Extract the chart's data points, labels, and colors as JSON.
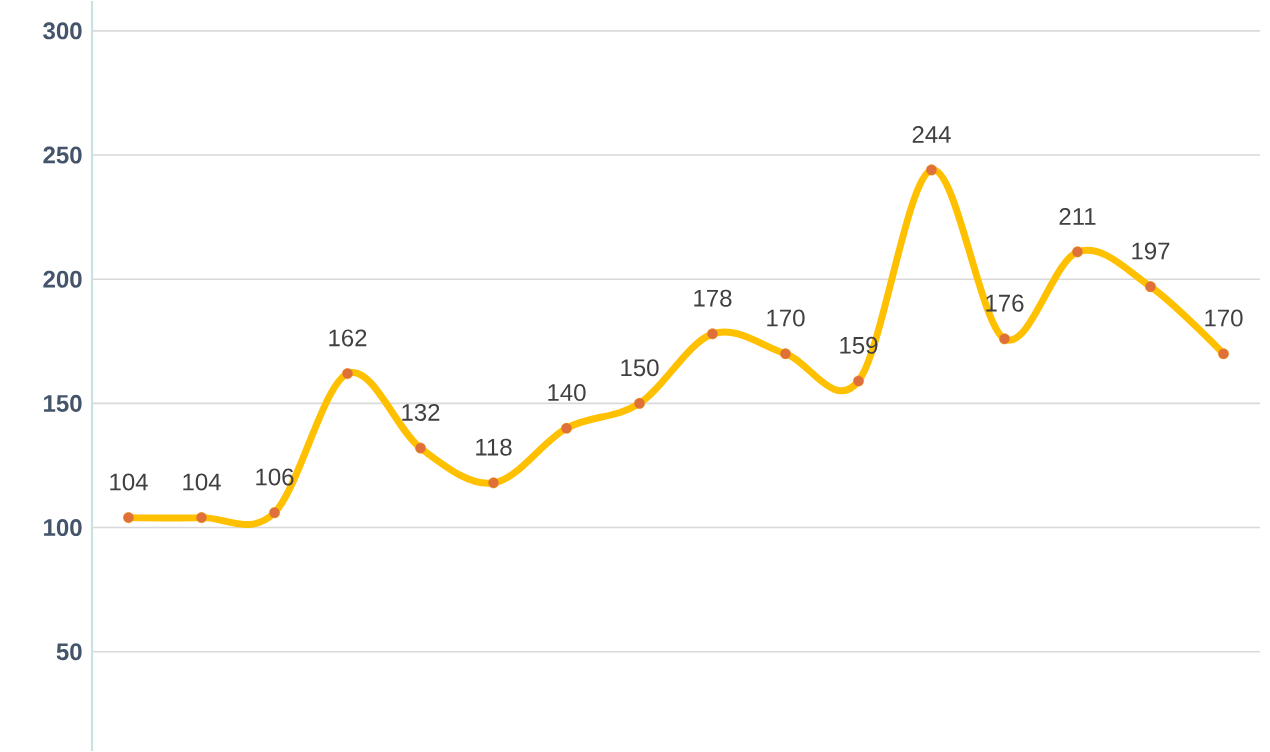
{
  "chart_data": {
    "type": "line",
    "categories": [
      null,
      null,
      null,
      null,
      null,
      null,
      null,
      null,
      null,
      null,
      null,
      null,
      null,
      null,
      null,
      null
    ],
    "series": [
      {
        "color": "#ffc000",
        "values": [
          104,
          104,
          106,
          162,
          132,
          118,
          140,
          150,
          178,
          170,
          159,
          244,
          176,
          211,
          197,
          170
        ]
      }
    ],
    "ylim": [
      10,
      312
    ],
    "yticks": [
      50,
      100,
      150,
      200,
      250,
      300
    ],
    "grid": "y",
    "marker": "circle",
    "line_style": "solid",
    "data_labels": true,
    "tick_labels": "y"
  }
}
